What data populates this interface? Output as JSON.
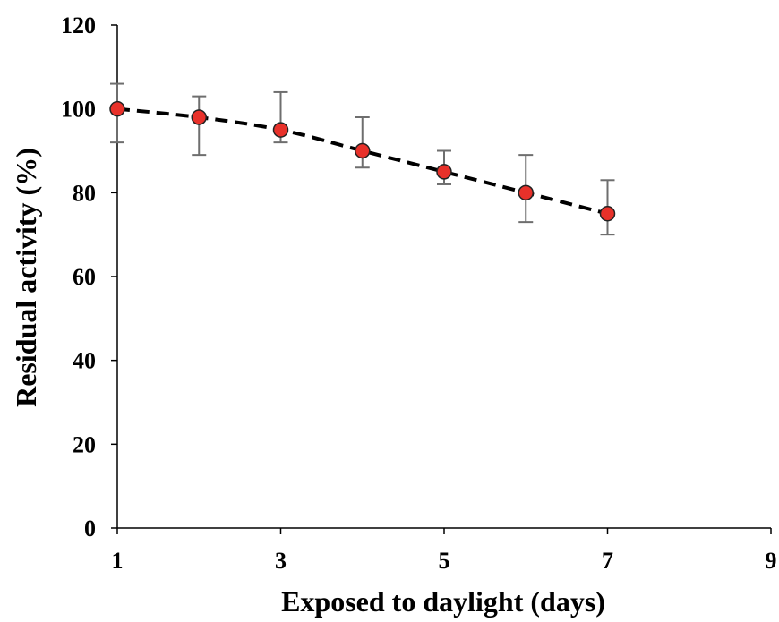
{
  "chart_data": {
    "type": "line",
    "xlabel": "Exposed to daylight (days)",
    "ylabel": "Residual activity (%)",
    "xlim": [
      1,
      9
    ],
    "ylim": [
      0,
      120
    ],
    "xticks": [
      1,
      3,
      5,
      7,
      9
    ],
    "yticks": [
      0,
      20,
      40,
      60,
      80,
      100,
      120
    ],
    "grid": false,
    "series": [
      {
        "x": [
          1,
          2,
          3,
          4,
          5,
          6,
          7
        ],
        "y": [
          100,
          98,
          95,
          90,
          85,
          80,
          75
        ],
        "err_upper": [
          106,
          103,
          104,
          98,
          90,
          89,
          83
        ],
        "err_lower": [
          92,
          89,
          92,
          86,
          82,
          73,
          70
        ],
        "line_style": "dashed",
        "line_color": "#000000",
        "marker_color": "#e8312a",
        "error_bar_color": "#6e6e6e"
      }
    ]
  }
}
